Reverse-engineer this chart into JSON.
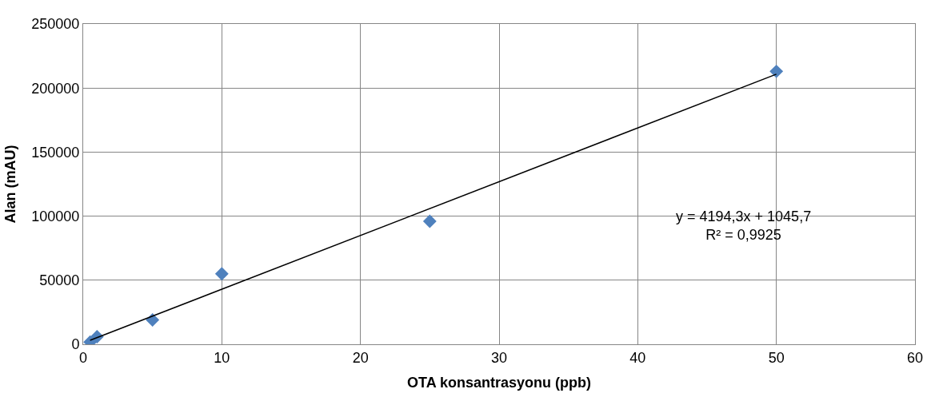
{
  "chart_data": {
    "type": "scatter",
    "xlabel": "OTA konsantrasyonu (ppb)",
    "ylabel": "Alan (mAU)",
    "xlim": [
      0,
      60
    ],
    "xticks": [
      0,
      10,
      20,
      30,
      40,
      50,
      60
    ],
    "ylim": [
      0,
      250000
    ],
    "yticks": [
      0,
      50000,
      100000,
      150000,
      200000,
      250000
    ],
    "grid": true,
    "marker": "diamond",
    "series": [
      {
        "color": "#4f81bd",
        "x": [
          0.5,
          1,
          5,
          10,
          25,
          50
        ],
        "values": [
          1700,
          5900,
          19000,
          55000,
          96000,
          213000
        ]
      },
      {
        "type": "line",
        "color": "#000000",
        "marker": "none",
        "x": [
          0.5,
          50
        ],
        "values": [
          3100,
          210800
        ]
      }
    ],
    "annotations": [
      "y = 4194,3x + 1045,7",
      "R² = 0,9925"
    ]
  }
}
